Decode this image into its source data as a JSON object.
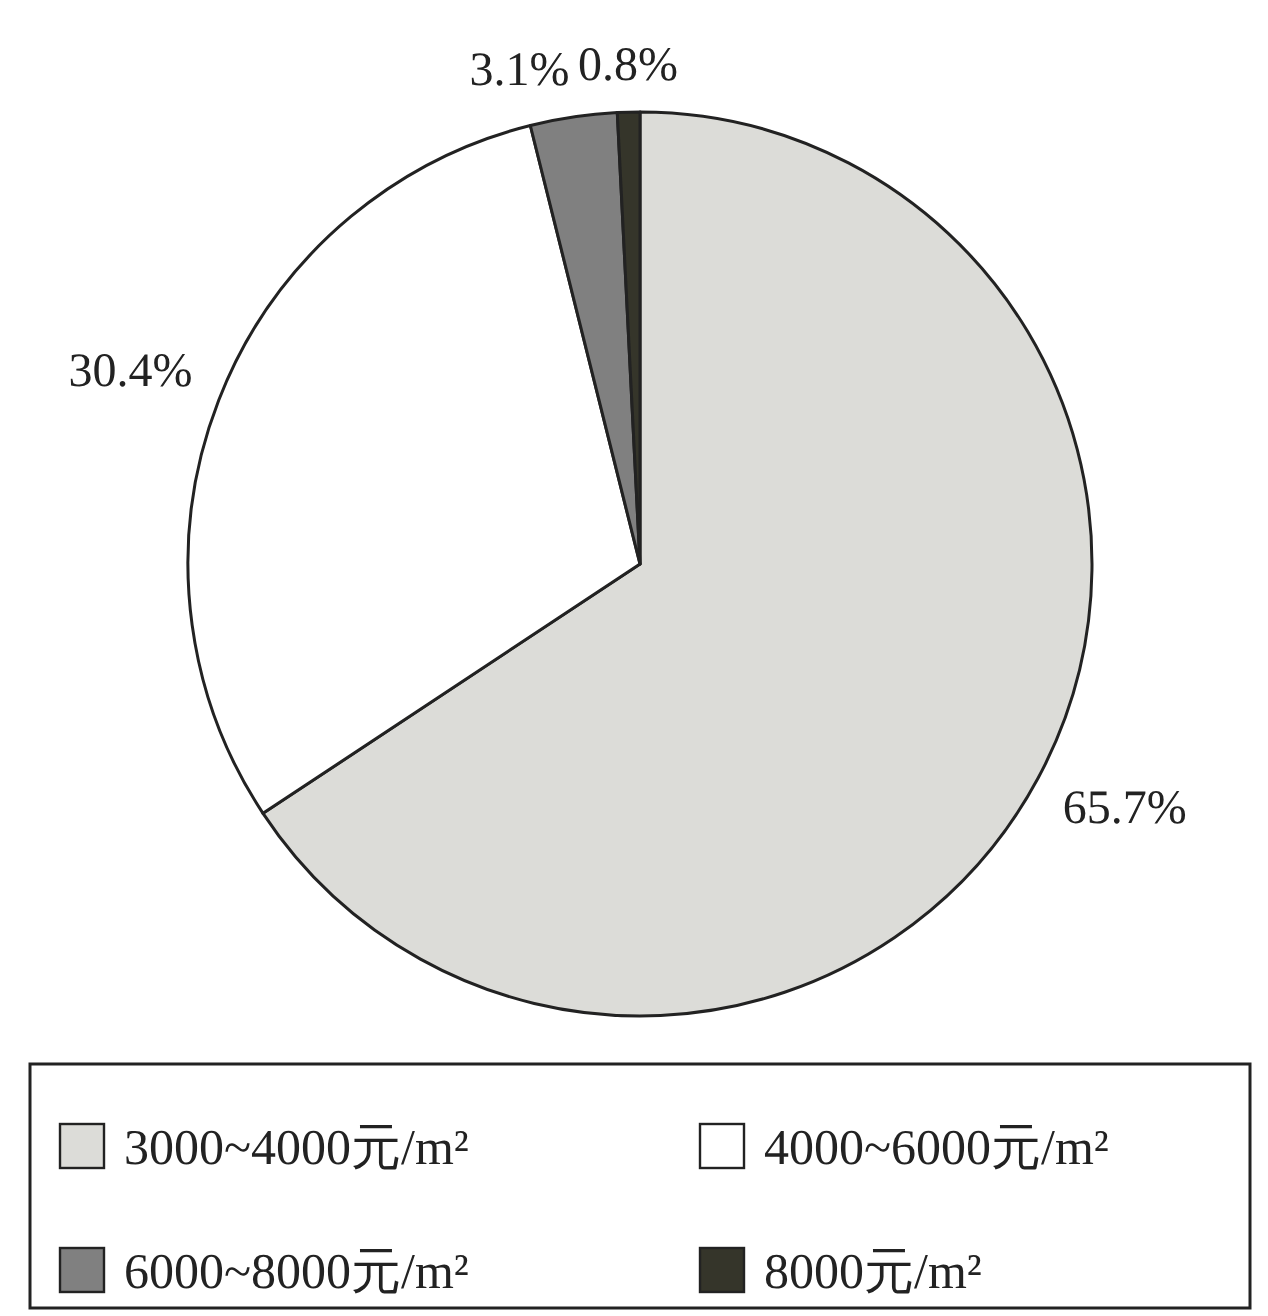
{
  "chart_data": {
    "type": "pie",
    "categories": [
      "3000~4000元/m²",
      "4000~6000元/m²",
      "6000~8000元/m²",
      "8000元/m²"
    ],
    "values": [
      65.7,
      30.4,
      3.1,
      0.8
    ],
    "value_labels": [
      "65.7%",
      "30.4%",
      "3.1%",
      "0.8%"
    ],
    "colors": [
      "#dcdcd8",
      "#ffffff",
      "#808080",
      "#35352a"
    ],
    "legend": "bottom"
  }
}
